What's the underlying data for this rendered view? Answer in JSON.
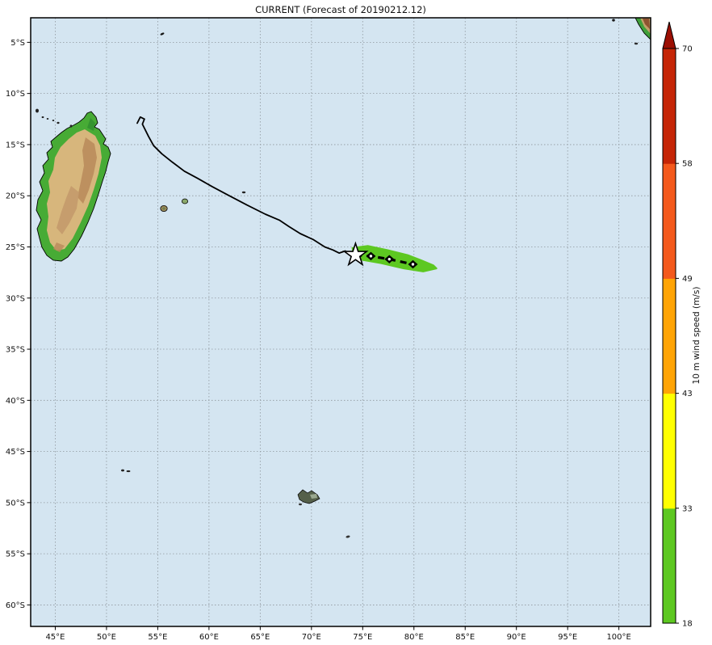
{
  "chart_data": {
    "type": "map",
    "title": "CURRENT (Forecast of 20190212.12)",
    "projection": "plate-carree",
    "map_extent": {
      "lon_min": 42.6,
      "lon_max": 103.1,
      "lat_min": -62.1,
      "lat_max": -2.6
    },
    "gridline_interval_deg": 5,
    "grid_on": true,
    "ocean_color": "#d4e5f1",
    "axes": {
      "x_ticks": [
        {
          "lon": 45,
          "label": "45°E"
        },
        {
          "lon": 50,
          "label": "50°E"
        },
        {
          "lon": 55,
          "label": "55°E"
        },
        {
          "lon": 60,
          "label": "60°E"
        },
        {
          "lon": 65,
          "label": "65°E"
        },
        {
          "lon": 70,
          "label": "70°E"
        },
        {
          "lon": 75,
          "label": "75°E"
        },
        {
          "lon": 80,
          "label": "80°E"
        },
        {
          "lon": 85,
          "label": "85°E"
        },
        {
          "lon": 90,
          "label": "90°E"
        },
        {
          "lon": 95,
          "label": "95°E"
        },
        {
          "lon": 100,
          "label": "100°E"
        }
      ],
      "y_ticks": [
        {
          "lat": -5,
          "label": "5°S"
        },
        {
          "lat": -10,
          "label": "10°S"
        },
        {
          "lat": -15,
          "label": "15°S"
        },
        {
          "lat": -20,
          "label": "20°S"
        },
        {
          "lat": -25,
          "label": "25°S"
        },
        {
          "lat": -30,
          "label": "30°S"
        },
        {
          "lat": -35,
          "label": "35°S"
        },
        {
          "lat": -40,
          "label": "40°S"
        },
        {
          "lat": -45,
          "label": "45°S"
        },
        {
          "lat": -50,
          "label": "50°S"
        },
        {
          "lat": -55,
          "label": "55°S"
        },
        {
          "lat": -60,
          "label": "60°S"
        }
      ]
    },
    "past_track_lonlat": [
      [
        53.0,
        -12.9
      ],
      [
        53.3,
        -12.3
      ],
      [
        53.7,
        -12.5
      ],
      [
        53.5,
        -13.0
      ],
      [
        54.1,
        -14.2
      ],
      [
        54.6,
        -15.1
      ],
      [
        55.4,
        -15.9
      ],
      [
        56.4,
        -16.7
      ],
      [
        57.6,
        -17.6
      ],
      [
        58.9,
        -18.3
      ],
      [
        60.3,
        -19.1
      ],
      [
        61.8,
        -19.9
      ],
      [
        63.7,
        -20.9
      ],
      [
        65.5,
        -21.8
      ],
      [
        66.9,
        -22.4
      ],
      [
        67.8,
        -23.0
      ],
      [
        68.9,
        -23.7
      ],
      [
        70.2,
        -24.3
      ],
      [
        71.3,
        -25.0
      ],
      [
        72.1,
        -25.3
      ],
      [
        72.7,
        -25.6
      ],
      [
        73.3,
        -25.4
      ],
      [
        73.8,
        -25.8
      ],
      [
        74.3,
        -25.8
      ]
    ],
    "current_position_lonlat": [
      74.3,
      -25.8
    ],
    "forecast_track_lonlat": [
      [
        74.3,
        -25.8
      ],
      [
        75.8,
        -25.9
      ],
      [
        77.6,
        -26.2
      ],
      [
        79.9,
        -26.7
      ]
    ],
    "wind_swath_lonlat": [
      [
        74.0,
        -25.1
      ],
      [
        75.5,
        -24.9
      ],
      [
        77.4,
        -25.3
      ],
      [
        79.4,
        -25.8
      ],
      [
        80.7,
        -26.3
      ],
      [
        81.9,
        -26.8
      ],
      [
        82.2,
        -27.1
      ],
      [
        80.9,
        -27.4
      ],
      [
        79.0,
        -27.1
      ],
      [
        76.8,
        -26.6
      ],
      [
        75.1,
        -26.3
      ],
      [
        74.1,
        -26.0
      ]
    ],
    "swath_wind_category": "18-33 m/s",
    "colorbar": {
      "label": "10 m wind speed (m/s)",
      "boundaries": [
        "18",
        "33",
        "43",
        "49",
        "58",
        "70"
      ],
      "colors": [
        "#5dc821",
        "#ffff00",
        "#ffa405",
        "#f4591c",
        "#c52506"
      ],
      "extend_above_color": "#9c0f03"
    }
  }
}
